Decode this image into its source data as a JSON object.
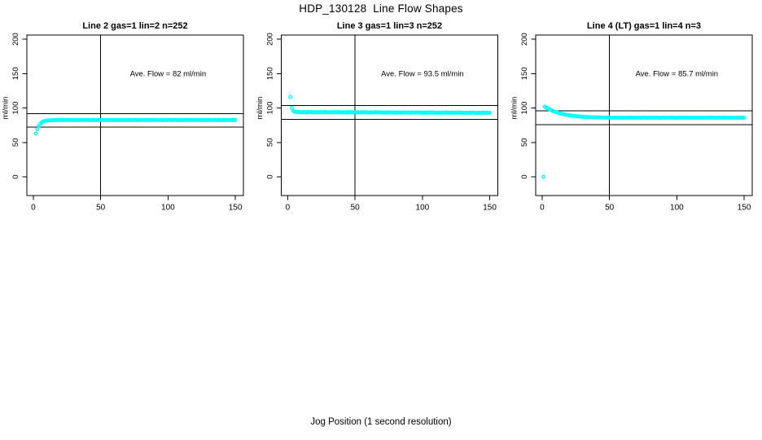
{
  "chart_data": {
    "type": "scatter",
    "title": "HDP_130128  Line Flow Shapes",
    "xlabel": "Jog Position (1 second resolution)",
    "ylabel": "ml/min",
    "x_ticks": [
      0,
      50,
      100,
      150
    ],
    "y_ticks": [
      0,
      50,
      100,
      150,
      200
    ],
    "xlim": [
      -4.8,
      156
    ],
    "ylim": [
      -27.2,
      206
    ],
    "grid": false,
    "marker": {
      "shape": "open-circle",
      "color": "#00FFFF",
      "radius_px": 1.8
    },
    "reference_band_halfwidth": 10,
    "vline_x": 50,
    "panels": [
      {
        "title": "Line 2 gas=1 lin=2 n=252",
        "ave_flow": 82,
        "annotation": "Ave. Flow =  82  ml/min",
        "hlines": [
          72,
          92
        ],
        "vline_x": 50,
        "series": {
          "x_start": 2,
          "x_step": 1,
          "y": [
            63,
            69.4,
            73.7,
            76.6,
            78.6,
            79.9,
            80.7,
            81.3,
            81.7,
            81.9,
            82.1,
            82.2,
            82.3,
            82.4,
            82.5,
            82.3,
            82.6,
            82.4,
            82.5,
            82.6,
            82.3,
            82.5,
            82.4,
            82.6,
            82.5,
            82.3,
            82.6,
            82.4,
            82.5,
            82.6,
            82.3,
            82.5,
            82.4,
            82.6,
            82.5,
            82.3,
            82.6,
            82.4,
            82.5,
            82.6,
            82.3,
            82.5,
            82.4,
            82.6,
            82.5,
            82.3,
            82.6,
            82.4,
            82.5,
            82.6,
            82.3,
            82.5,
            82.4,
            82.6,
            82.5,
            82.3,
            82.6,
            82.4,
            82.5,
            82.6,
            82.3,
            82.5,
            82.4,
            82.6,
            82.5,
            82.3,
            82.6,
            82.4,
            82.5,
            82.6,
            82.3,
            82.5,
            82.4,
            82.6,
            82.5,
            82.3,
            82.6,
            82.4,
            82.5,
            82.6,
            82.3,
            82.5,
            82.4,
            82.6,
            82.5,
            82.3,
            82.6,
            82.4,
            82.5,
            82.6,
            82.3,
            82.5,
            82.4,
            82.6,
            82.5,
            82.3,
            82.6,
            82.4,
            82.5,
            82.6,
            82.3,
            82.5,
            82.4,
            82.6,
            82.5,
            82.3,
            82.6,
            82.4,
            82.5,
            82.6,
            82.3,
            82.5,
            82.4,
            82.6,
            82.5,
            82.3,
            82.6,
            82.4,
            82.5,
            82.6,
            82.3,
            82.5,
            82.4,
            82.6,
            82.5,
            82.3,
            82.6,
            82.4,
            82.5,
            82.6,
            82.3,
            82.5,
            82.4,
            82.6,
            82.5,
            82.3,
            82.6,
            82.4,
            82.5,
            82.6,
            82.3,
            82.5,
            82.4,
            82.6,
            82.5,
            82.3,
            82.6,
            82.4,
            82.5
          ]
        }
      },
      {
        "title": "Line 3 gas=1 lin=3 n=252",
        "ave_flow": 93.5,
        "annotation": "Ave. Flow =  93.5  ml/min",
        "hlines": [
          83.5,
          103.5
        ],
        "vline_x": 50,
        "series": {
          "x_start": 2,
          "x_step": 1,
          "y": [
            116,
            100.1,
            96.1,
            94.7,
            94.2,
            94,
            94.2,
            93.7,
            94,
            93.5,
            94.1,
            93.9,
            93.6,
            94.3,
            93.8,
            94.1,
            94.1,
            93.6,
            93.9,
            93.4,
            94,
            93.8,
            93.5,
            94.2,
            93.7,
            94,
            94.1,
            93.6,
            93.9,
            93.4,
            94,
            93.8,
            93.5,
            94.2,
            93.7,
            94,
            94,
            93.5,
            93.8,
            93.3,
            93.9,
            93.7,
            93.4,
            94.1,
            93.6,
            93.9,
            93.9,
            93.4,
            93.7,
            93.2,
            93.8,
            93.6,
            93.3,
            94,
            93.5,
            93.8,
            93.9,
            93.4,
            93.7,
            93.2,
            93.8,
            93.6,
            93.3,
            94,
            93.5,
            93.8,
            93.8,
            93.3,
            93.6,
            93.1,
            93.7,
            93.5,
            93.2,
            93.9,
            93.4,
            93.7,
            93.7,
            93.2,
            93.5,
            93,
            93.6,
            93.4,
            93.1,
            93.8,
            93.3,
            93.6,
            93.7,
            93.2,
            93.5,
            93,
            93.6,
            93.4,
            93.1,
            93.8,
            93.3,
            93.6,
            93.6,
            93.1,
            93.4,
            92.9,
            93.5,
            93.3,
            93,
            93.7,
            93.2,
            93.5,
            93.5,
            93,
            93.3,
            92.8,
            93.4,
            93.2,
            92.9,
            93.6,
            93.1,
            93.4,
            93.5,
            93,
            93.3,
            92.8,
            93.4,
            93.2,
            92.9,
            93.6,
            93.1,
            93.4,
            93.4,
            92.9,
            93.2,
            92.7,
            93.3,
            93.1,
            92.8,
            93.5,
            93,
            93.3,
            93.3,
            92.8,
            93.1,
            92.6,
            93.2,
            93,
            92.7,
            93.4,
            92.9,
            93.2,
            93,
            93.2,
            92.9
          ]
        }
      },
      {
        "title": "Line 4 (LT) gas=1 lin=4 n=3",
        "ave_flow": 85.7,
        "annotation": "Ave. Flow =  85.7  ml/min",
        "hlines": [
          75.7,
          95.7
        ],
        "vline_x": 50,
        "series": {
          "x_start": 1,
          "x_step": 1,
          "y": [
            0,
            102.1,
            100.8,
            99.6,
            98.5,
            97.5,
            96.5,
            95.7,
            94.9,
            94.2,
            93.5,
            92.9,
            92.3,
            91.8,
            91.3,
            90.9,
            90.5,
            90.1,
            89.7,
            89.4,
            89.1,
            88.8,
            88.6,
            88.3,
            88.1,
            87.9,
            87.8,
            87.6,
            87.4,
            87.3,
            87.2,
            87,
            86.9,
            86.8,
            86.7,
            86.6,
            86.6,
            86.5,
            86.4,
            86.4,
            86.3,
            86.3,
            86.2,
            86.2,
            86.1,
            86.1,
            86.1,
            86,
            86,
            86,
            85.9,
            86.1,
            85.7,
            86,
            85.8,
            86.2,
            85.9,
            85.6,
            86,
            85.8,
            85.9,
            86.1,
            85.7,
            86,
            85.8,
            86.2,
            85.9,
            85.6,
            86,
            85.8,
            85.9,
            86.1,
            85.7,
            86,
            85.8,
            86.2,
            85.9,
            85.6,
            86,
            85.8,
            85.9,
            86.1,
            85.7,
            86,
            85.8,
            86.2,
            85.9,
            85.6,
            86,
            85.8,
            85.9,
            86.1,
            85.7,
            86,
            85.8,
            86.2,
            85.9,
            85.6,
            86,
            85.8,
            85.9,
            86.1,
            85.7,
            86,
            85.8,
            86.2,
            85.9,
            85.6,
            86,
            85.8,
            85.9,
            86.1,
            85.7,
            86,
            85.8,
            86.2,
            85.9,
            85.6,
            86,
            85.8,
            85.9,
            86.1,
            85.7,
            86,
            85.8,
            86.2,
            85.9,
            85.6,
            86,
            85.8,
            85.9,
            86.1,
            85.7,
            86,
            85.8,
            86.2,
            85.9,
            85.6,
            86,
            85.8,
            85.9,
            86.1,
            85.7,
            86,
            85.8,
            86.2,
            85.9,
            85.6,
            86,
            85.8
          ]
        }
      }
    ]
  }
}
